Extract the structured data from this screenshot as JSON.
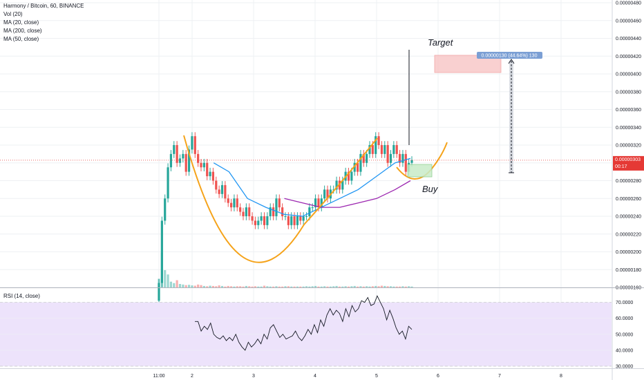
{
  "legend": {
    "title": "Harmony / Bitcoin, 60, BINANCE",
    "vol": "Vol (20)",
    "ma20": "MA (20, close)",
    "ma200": "MA (200, close)",
    "ma50": "MA (50, close)"
  },
  "rsi_legend": "RSI (14, close)",
  "annotations": {
    "target": "Target",
    "buy": "Buy",
    "measure_label": "0.00000130 (44.64%) 130"
  },
  "price_badge": {
    "value": "0.00000303",
    "countdown": "00:17"
  },
  "colors": {
    "up": "#26a69a",
    "down": "#ef5350",
    "ma_blue": "#2196f3",
    "ma_purple": "#9c27b0",
    "cup_curve": "#f5a31a",
    "rsi_band": "#ede3fb",
    "current_price_line": "#e53935",
    "target_box": "#f8c8c8",
    "buy_box": "#c8ecc8"
  },
  "chart_data": [
    {
      "type": "candlestick",
      "title": "Harmony / Bitcoin, 60, BINANCE",
      "x_tick_labels": [
        "11:00",
        "2",
        "3",
        "4",
        "5",
        "6",
        "7",
        "8"
      ],
      "y_tick_labels": [
        "0.00000160",
        "0.00000180",
        "0.00000200",
        "0.00000220",
        "0.00000240",
        "0.00000260",
        "0.00000280",
        "0.00000300",
        "0.00000320",
        "0.00000340",
        "0.00000360",
        "0.00000380",
        "0.00000400",
        "0.00000420",
        "0.00000440",
        "0.00000460",
        "0.00000480"
      ],
      "ylim": [
        1.6e-06,
        4.8e-06
      ],
      "current_price": 3.03e-06,
      "grid": true,
      "close_series": [
        1.65e-06,
        2.35e-06,
        2.6e-06,
        2.95e-06,
        3.1e-06,
        3.2e-06,
        3e-06,
        3.05e-06,
        3.1e-06,
        2.9e-06,
        3.15e-06,
        3.3e-06,
        3.1e-06,
        3e-06,
        2.95e-06,
        3e-06,
        2.85e-06,
        2.9e-06,
        2.8e-06,
        2.7e-06,
        2.65e-06,
        2.75e-06,
        2.6e-06,
        2.55e-06,
        2.5e-06,
        2.6e-06,
        2.5e-06,
        2.45e-06,
        2.4e-06,
        2.5e-06,
        2.4e-06,
        2.35e-06,
        2.3e-06,
        2.35e-06,
        2.4e-06,
        2.3e-06,
        2.4e-06,
        2.5e-06,
        2.4e-06,
        2.6e-06,
        2.5e-06,
        2.4e-06,
        2.4e-06,
        2.3e-06,
        2.4e-06,
        2.3e-06,
        2.4e-06,
        2.35e-06,
        2.4e-06,
        2.4e-06,
        2.5e-06,
        2.5e-06,
        2.6e-06,
        2.5e-06,
        2.6e-06,
        2.7e-06,
        2.6e-06,
        2.7e-06,
        2.7e-06,
        2.8e-06,
        2.7e-06,
        2.8e-06,
        2.9e-06,
        2.8e-06,
        2.9e-06,
        3e-06,
        2.9e-06,
        3.1e-06,
        3e-06,
        3.1e-06,
        3.2e-06,
        3.1e-06,
        3.3e-06,
        3.2e-06,
        3.1e-06,
        3.2e-06,
        3e-06,
        3.1e-06,
        3.2e-06,
        3.1e-06,
        3e-06,
        3.1e-06,
        2.9e-06,
        3e-06,
        3.03e-06
      ],
      "volume": [
        30,
        120,
        60,
        45,
        20,
        15,
        25,
        12,
        10,
        8,
        9,
        7,
        6,
        10,
        8,
        5,
        4,
        6,
        5,
        4,
        7,
        5,
        3,
        5,
        4,
        3,
        4,
        4,
        3,
        5,
        4,
        3,
        4,
        3,
        3,
        6,
        4,
        3,
        3,
        4,
        3,
        3,
        4,
        4,
        3,
        3,
        3,
        3,
        3,
        4,
        3,
        4,
        5,
        3,
        3,
        4,
        3,
        3,
        4,
        5,
        3,
        3,
        4,
        3,
        4,
        5,
        3,
        4,
        3,
        4,
        3,
        4,
        5,
        4,
        6,
        5,
        4,
        4,
        3,
        3,
        3,
        4,
        3,
        4,
        3
      ],
      "ma_20": [
        [
          2.35,
          3e-06
        ],
        [
          2.6,
          2.9e-06
        ],
        [
          2.9,
          2.6e-06
        ],
        [
          3.2,
          2.5e-06
        ],
        [
          3.5,
          2.42e-06
        ],
        [
          3.8,
          2.4e-06
        ],
        [
          4.1,
          2.5e-06
        ],
        [
          4.4,
          2.6e-06
        ],
        [
          4.7,
          2.7e-06
        ],
        [
          5.0,
          2.85e-06
        ],
        [
          5.3,
          3e-06
        ],
        [
          5.55,
          3.05e-06
        ]
      ],
      "ma_50": [
        [
          3.5,
          2.6e-06
        ],
        [
          3.8,
          2.55e-06
        ],
        [
          4.1,
          2.5e-06
        ],
        [
          4.4,
          2.5e-06
        ],
        [
          4.7,
          2.55e-06
        ],
        [
          5.0,
          2.6e-06
        ],
        [
          5.3,
          2.7e-06
        ],
        [
          5.55,
          2.8e-06
        ]
      ]
    },
    {
      "type": "line",
      "title": "RSI (14, close)",
      "y_tick_labels": [
        "30.0000",
        "40.0000",
        "50.0000",
        "60.0000",
        "70.0000"
      ],
      "ylim": [
        30,
        75
      ],
      "band": [
        30,
        70
      ],
      "values": [
        58,
        58,
        52,
        55,
        53,
        57,
        50,
        48,
        47,
        49,
        46,
        48,
        46,
        50,
        45,
        42,
        40,
        45,
        42,
        44,
        47,
        44,
        50,
        47,
        54,
        56,
        52,
        48,
        50,
        47,
        48,
        49,
        52,
        48,
        46,
        49,
        53,
        50,
        56,
        51,
        59,
        55,
        62,
        66,
        62,
        65,
        63,
        58,
        66,
        61,
        68,
        64,
        66,
        71,
        70,
        73,
        68,
        69,
        74,
        70,
        66,
        59,
        65,
        60,
        54,
        50,
        52,
        47,
        55,
        53
      ]
    }
  ]
}
